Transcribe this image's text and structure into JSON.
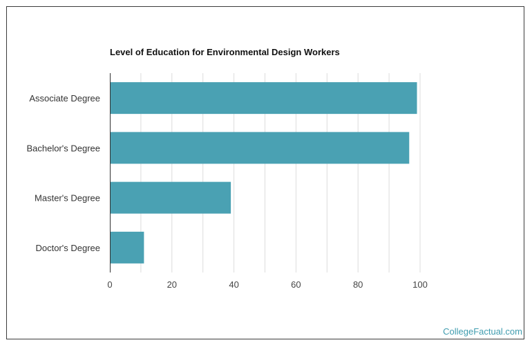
{
  "chart_data": {
    "type": "bar",
    "orientation": "horizontal",
    "title": "Level of Education for Environmental Design Workers",
    "xlabel": "",
    "ylabel": "",
    "categories": [
      "Associate Degree",
      "Bachelor's Degree",
      "Master's Degree",
      "Doctor's Degree"
    ],
    "values": [
      99,
      96.5,
      39,
      11
    ],
    "xlim": [
      0,
      100
    ],
    "xticks": [
      0,
      20,
      40,
      60,
      80,
      100
    ],
    "grid": true,
    "bar_color": "#4aa1b3"
  },
  "credit": "CollegeFactual.com"
}
